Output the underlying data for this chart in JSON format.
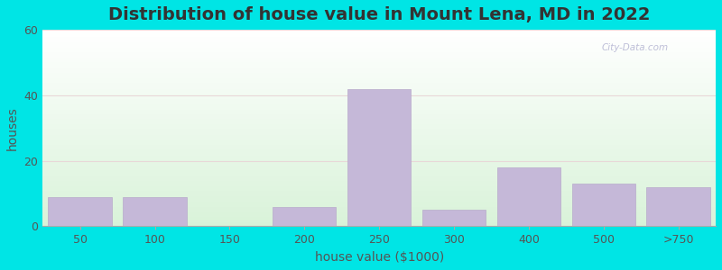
{
  "title": "Distribution of house value in Mount Lena, MD in 2022",
  "xlabel": "house value ($1000)",
  "ylabel": "houses",
  "categories": [
    "50",
    "100",
    "150",
    "200",
    "250",
    "300",
    "400",
    "500",
    ">750"
  ],
  "values": [
    9,
    9,
    0,
    6,
    42,
    5,
    18,
    13,
    12
  ],
  "bar_color": "#c5b8d8",
  "bar_edgecolor": "#b8aacb",
  "ylim": [
    0,
    60
  ],
  "yticks": [
    0,
    20,
    40,
    60
  ],
  "background_outer": "#00e5e5",
  "title_fontsize": 14,
  "axis_label_fontsize": 10,
  "tick_fontsize": 9,
  "watermark_text": "City-Data.com"
}
